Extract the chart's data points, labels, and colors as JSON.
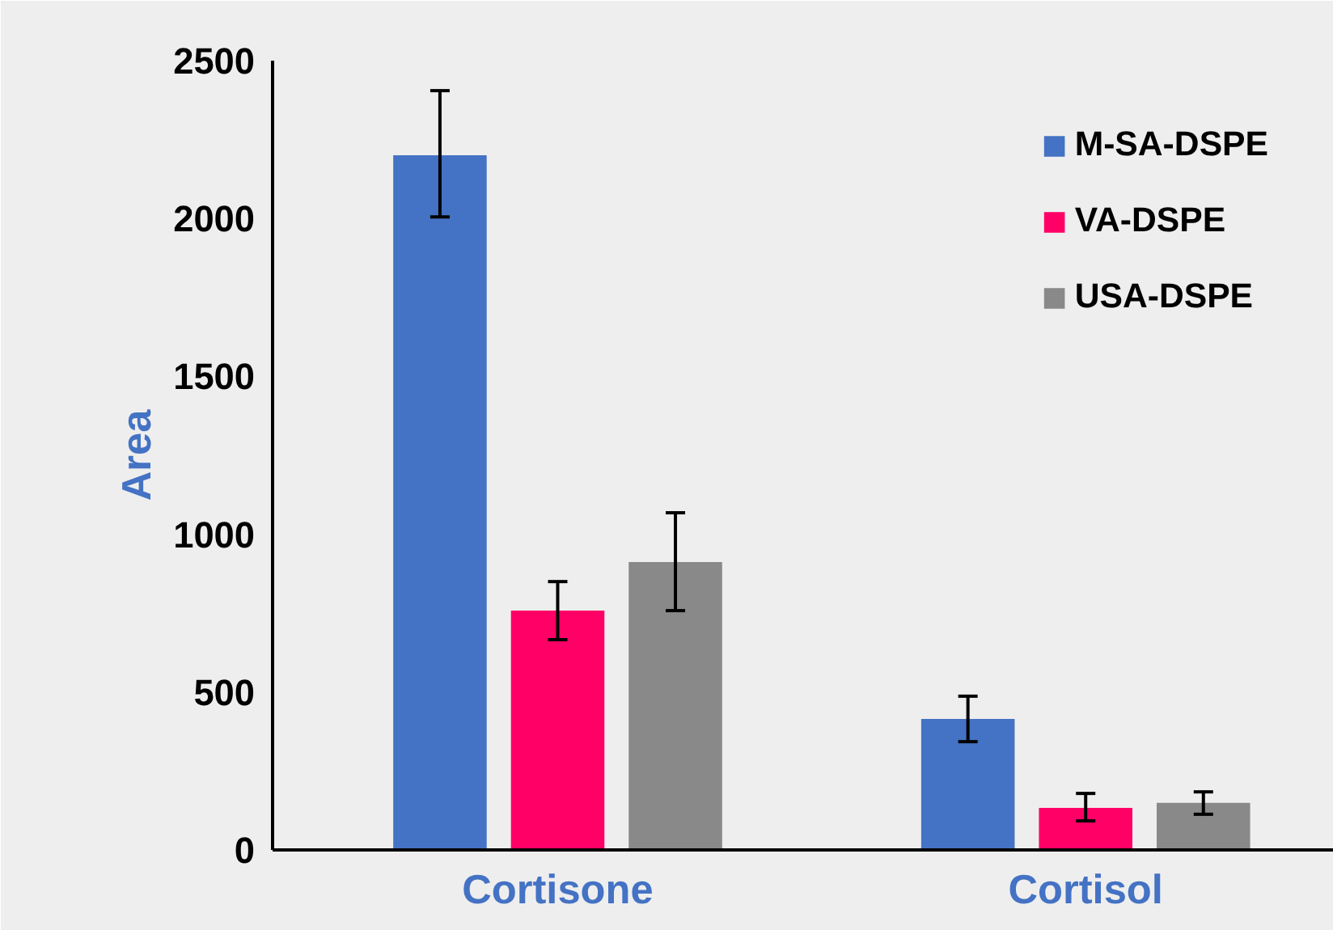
{
  "chart_data": {
    "type": "bar",
    "ylabel": "Area",
    "categories": [
      "Cortisone",
      "Cortisol"
    ],
    "series": [
      {
        "name": "M-SA-DSPE",
        "color": "#4472c4",
        "values": [
          2200,
          415
        ],
        "errors": [
          [
            2005,
            2405
          ],
          [
            343,
            487
          ]
        ]
      },
      {
        "name": "VA-DSPE",
        "color": "#ff0066",
        "values": [
          758,
          133
        ],
        "errors": [
          [
            666,
            850
          ],
          [
            92,
            179
          ]
        ]
      },
      {
        "name": "USA-DSPE",
        "color": "#898989",
        "values": [
          912,
          149
        ],
        "errors": [
          [
            758,
            1068
          ],
          [
            113,
            184
          ]
        ]
      }
    ],
    "ylim": [
      0,
      2500
    ],
    "yticks": [
      0,
      500,
      1000,
      1500,
      2000,
      2500
    ],
    "grid": false,
    "legend": "top right"
  }
}
